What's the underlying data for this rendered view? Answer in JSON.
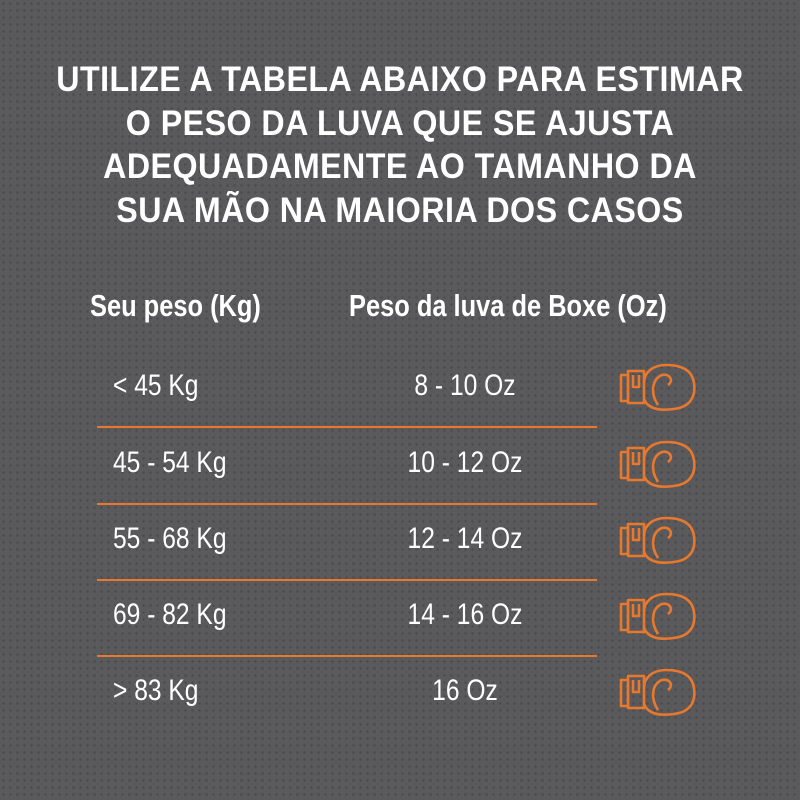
{
  "title_lines": [
    "UTILIZE A TABELA ABAIXO PARA ESTIMAR",
    "O PESO DA LUVA QUE SE AJUSTA",
    "ADEQUADAMENTE AO TAMANHO DA",
    "SUA MÃO NA MAIORIA DOS CASOS"
  ],
  "headers": {
    "weight": "Seu peso (Kg)",
    "glove": "Peso da luva de Boxe (Oz)"
  },
  "rows": [
    {
      "weight": "< 45 Kg",
      "glove": "8 - 10 Oz"
    },
    {
      "weight": "45 - 54 Kg",
      "glove": "10 - 12 Oz"
    },
    {
      "weight": "55 - 68 Kg",
      "glove": "12 - 14 Oz"
    },
    {
      "weight": "69 - 82 Kg",
      "glove": "14 - 16 Oz"
    },
    {
      "weight": "> 83 Kg",
      "glove": "16 Oz"
    }
  ],
  "icon": "boxing-glove-icon",
  "colors": {
    "accent": "#e8782e",
    "background": "#5a5a5c",
    "text": "#ffffff"
  }
}
